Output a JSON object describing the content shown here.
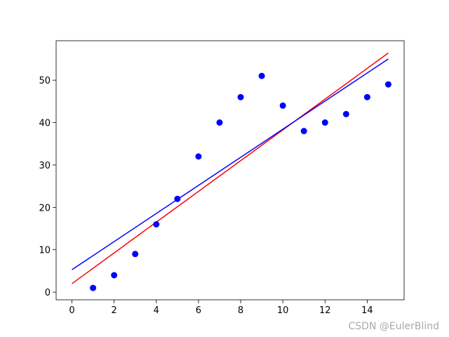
{
  "chart_data": {
    "type": "scatter",
    "watermark": "CSDN @EulerBlind",
    "xlim": [
      -0.75,
      15.75
    ],
    "xticks": [
      0,
      2,
      4,
      6,
      8,
      10,
      12,
      14
    ],
    "ylim": [
      -1.8,
      59.3
    ],
    "yticks": [
      0,
      10,
      20,
      30,
      40,
      50
    ],
    "grid": false,
    "series": [
      {
        "type": "line",
        "color": "#ff0000",
        "x": [
          0,
          15
        ],
        "values": [
          2.0,
          56.4
        ]
      },
      {
        "type": "line",
        "color": "#0000ff",
        "x": [
          0,
          15
        ],
        "values": [
          5.3,
          55.0
        ]
      },
      {
        "type": "scatter",
        "color": "#0000ff",
        "x": [
          1,
          2,
          3,
          4,
          5,
          6,
          7,
          8,
          9,
          10,
          11,
          12,
          13,
          14,
          15
        ],
        "values": [
          1,
          4,
          9,
          16,
          22,
          32,
          40,
          46,
          51,
          44,
          38,
          40,
          42,
          46,
          49
        ]
      }
    ]
  }
}
